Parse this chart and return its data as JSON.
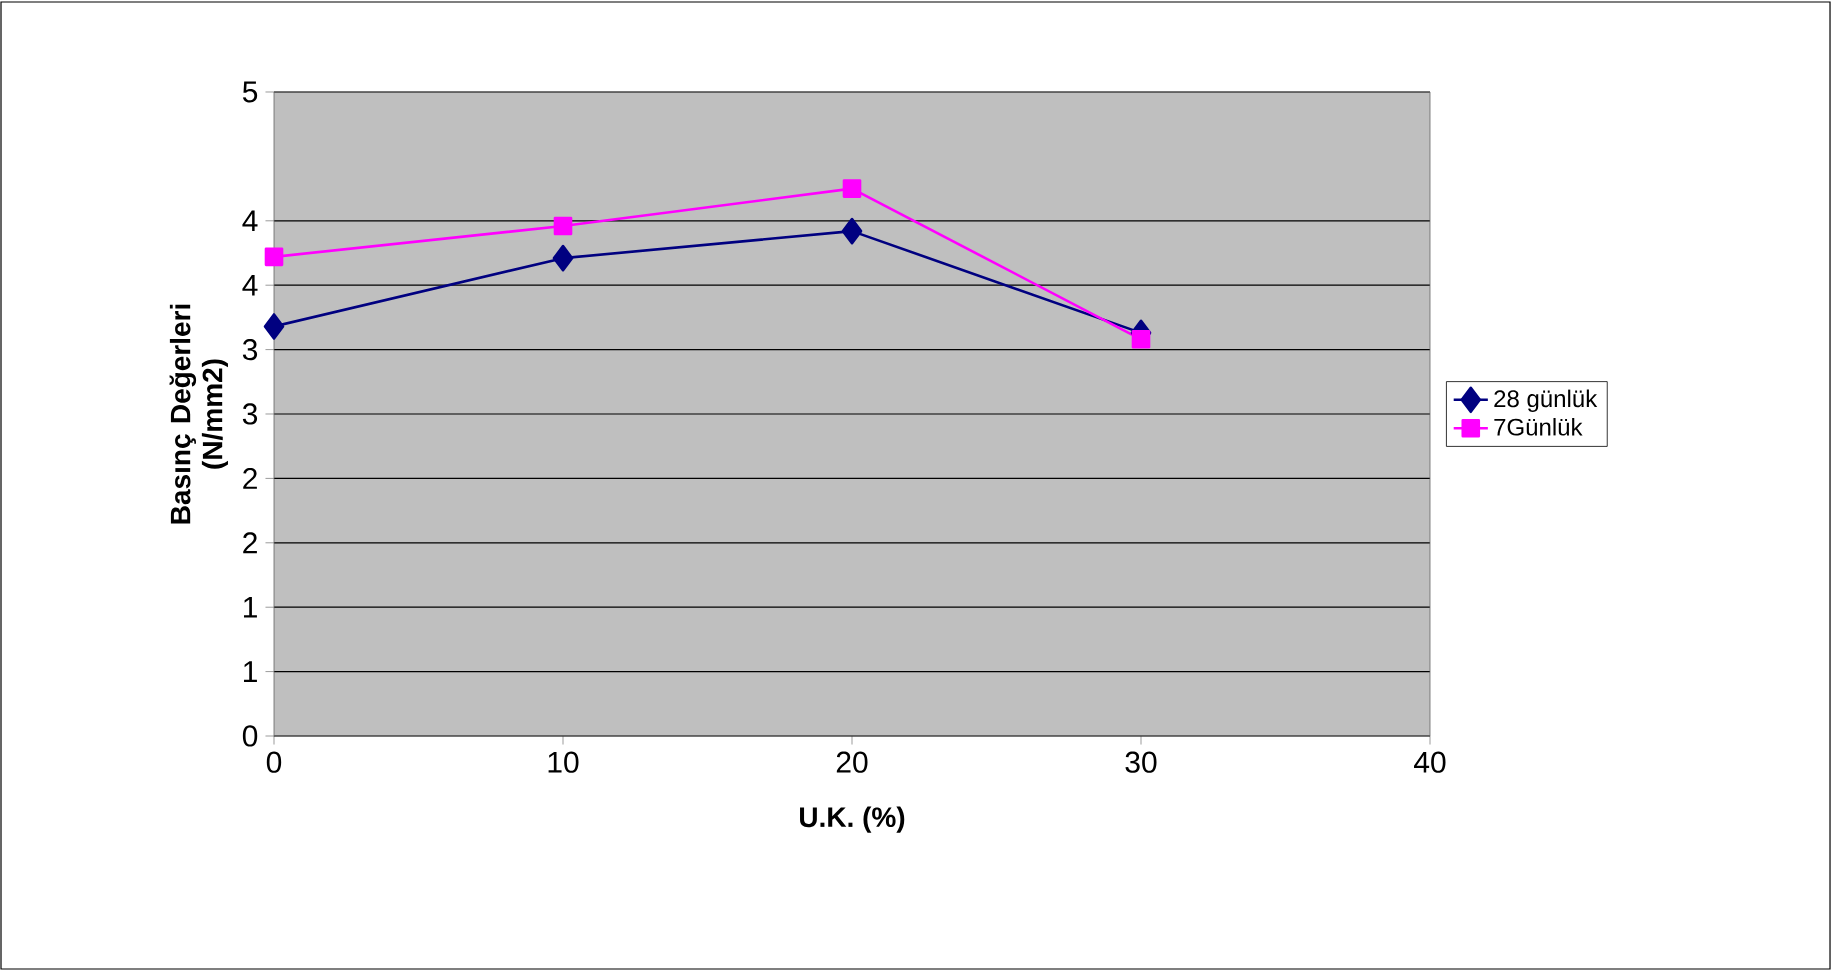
{
  "chart_data": {
    "type": "line",
    "xlabel": "U.K. (%)",
    "ylabel": "Basınç Değerleri (N/mm2)",
    "x": [
      0,
      10,
      20,
      30
    ],
    "series": [
      {
        "name": "28 günlük",
        "color": "#000080",
        "marker": "diamond",
        "values": [
          3.18,
          3.71,
          3.92,
          3.13
        ]
      },
      {
        "name": "7Günlük",
        "color": "#ff00ff",
        "marker": "square",
        "values": [
          3.72,
          3.96,
          4.25,
          3.08
        ]
      }
    ],
    "xlim": [
      0,
      40
    ],
    "xticks": [
      0,
      10,
      20,
      30,
      40
    ],
    "ylim": [
      0,
      5
    ],
    "yticks": [
      0,
      {
        "value": 0.5,
        "label": "1"
      },
      1,
      {
        "value": 1.5,
        "label": "2"
      },
      2,
      {
        "value": 2.5,
        "label": "3"
      },
      3,
      {
        "value": 3.5,
        "label": "4"
      },
      4,
      5
    ],
    "grid": "y",
    "legend": "right"
  }
}
